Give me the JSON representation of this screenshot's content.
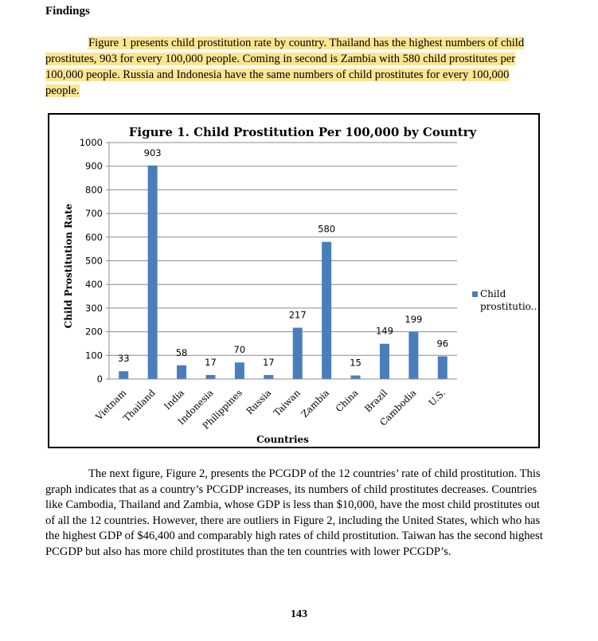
{
  "heading": "Findings",
  "intro": "Figure 1 presents child prostitution rate by country. Thailand has the highest numbers of child prostitutes, 903 for every 100,000 people. Coming in second is Zambia with 580 child prostitutes per 100,000 people. Russia and Indonesia have the same numbers of child prostitutes for every 100,000 people.",
  "body": "The next figure, Figure 2, presents the PCGDP of the 12 countries’ rate of child prostitution. This graph indicates that as a country’s PCGDP increases, its numbers of child prostitutes decreases. Countries like Cambodia, Thailand and Zambia, whose GDP is less than $10,000, have the most child prostitutes out of all the 12 countries. However, there are outliers in Figure 2, including the United States, which who has the highest GDP of $46,400 and comparably high rates of child prostitution. Taiwan has the second highest PCGDP but also has more child prostitutes than the ten countries with lower PCGDP’s.",
  "page_number": "143",
  "colors": {
    "bar": "#4a7ebb",
    "highlight": "#fbe590",
    "grid": "#8c8c8c"
  },
  "chart_data": {
    "type": "bar",
    "title": "Figure 1.  Child Prostitution Per 100,000 by Country",
    "xlabel": "Countries",
    "ylabel": "Child Prostitution Rate",
    "categories": [
      "Vietnam",
      "Thailand",
      "India",
      "Indonesia",
      "Philippines",
      "Russia",
      "Taiwan",
      "Zambia",
      "China",
      "Brazil",
      "Cambodia",
      "U.S."
    ],
    "series": [
      {
        "name": "Child prostitutio...",
        "values": [
          33,
          903,
          58,
          17,
          70,
          17,
          217,
          580,
          15,
          149,
          199,
          96
        ]
      }
    ],
    "ylim": [
      0,
      1000
    ],
    "yticks": [
      "0",
      "100",
      "200",
      "300",
      "400",
      "500",
      "600",
      "700",
      "800",
      "900",
      "1000"
    ],
    "data_labels": [
      "33",
      "903",
      "58",
      "17",
      "70",
      "17",
      "217",
      "580",
      "15",
      "149",
      "199",
      "96"
    ],
    "legend_position": "right",
    "grid": true
  }
}
